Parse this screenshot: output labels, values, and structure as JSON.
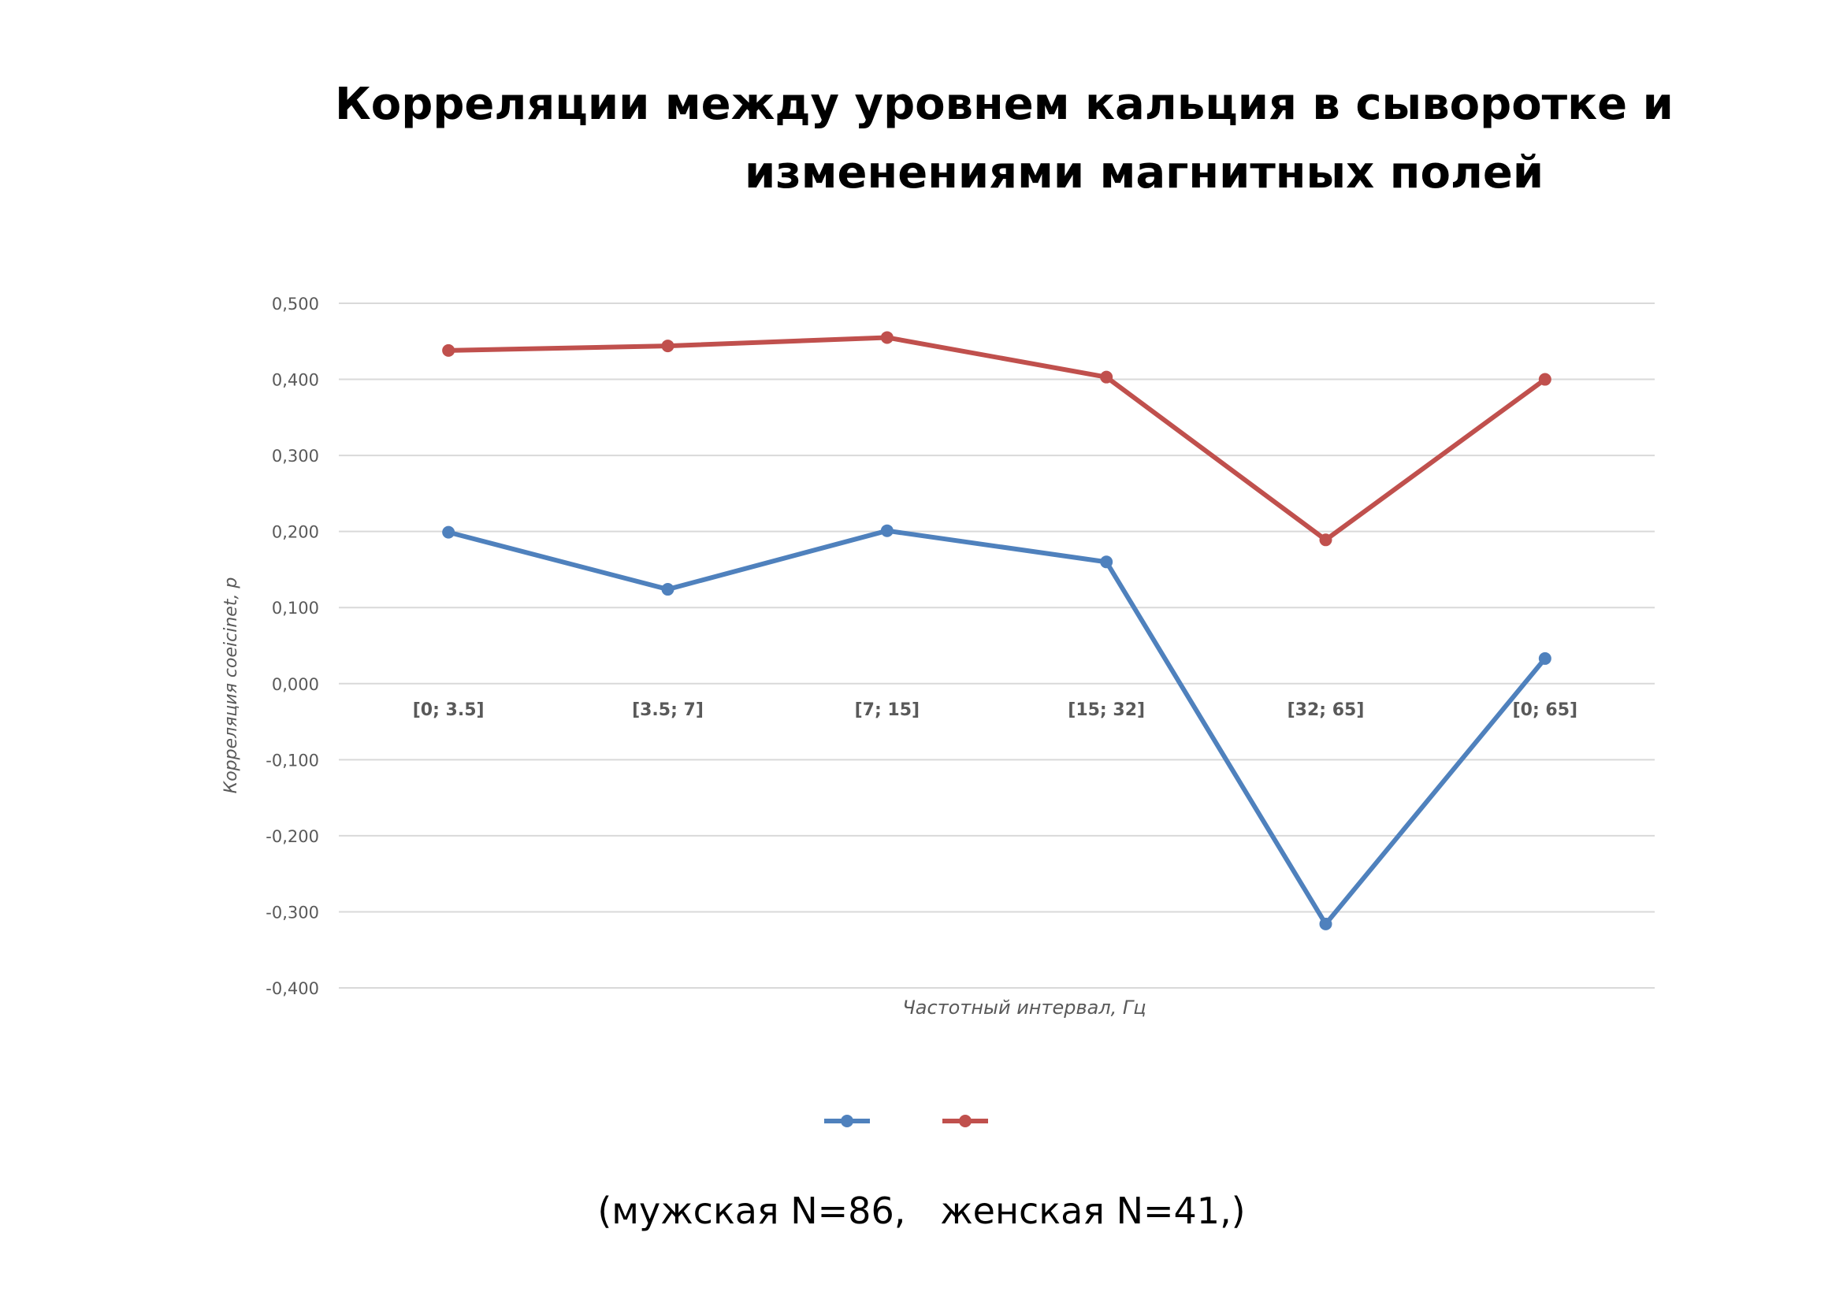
{
  "chart_data": {
    "type": "line",
    "title_lines": [
      "Корреляции между уровнем кальция в сыворотке и",
      "изменениями магнитных полей"
    ],
    "xlabel": "Частотный интервал, Гц",
    "ylabel": "Корреляция coeicinet, p",
    "categories": [
      "[0; 3.5]",
      "[3.5; 7]",
      "[7; 15]",
      "[15; 32]",
      "[32; 65]",
      "[0; 65]"
    ],
    "y_ticks": [
      "0,500",
      "0,400",
      "0,300",
      "0,200",
      "0,100",
      "0,000",
      "-0,100",
      "-0,200",
      "-0,300",
      "-0,400"
    ],
    "ylim": [
      -0.4,
      0.5
    ],
    "grid": true,
    "legend_position": "bottom",
    "series": [
      {
        "values": [
          0.199,
          0.124,
          0.201,
          0.16,
          -0.316,
          0.033
        ],
        "color": "#4f81bd"
      },
      {
        "values": [
          0.438,
          0.444,
          0.455,
          0.403,
          0.189,
          0.4
        ],
        "color": "#c0504d"
      }
    ],
    "footnote": "(мужская N=86,   женская N=41,)"
  }
}
